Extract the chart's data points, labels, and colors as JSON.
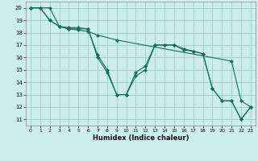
{
  "xlabel": "Humidex (Indice chaleur)",
  "bg_color": "#cceee8",
  "grid_color": "#99cccc",
  "line_color": "#1a6b5a",
  "xlim": [
    -0.5,
    23.5
  ],
  "ylim": [
    10.5,
    20.5
  ],
  "xticks": [
    0,
    1,
    2,
    3,
    4,
    5,
    6,
    7,
    8,
    9,
    10,
    11,
    12,
    13,
    14,
    15,
    16,
    17,
    18,
    19,
    20,
    21,
    22,
    23
  ],
  "yticks": [
    11,
    12,
    13,
    14,
    15,
    16,
    17,
    18,
    19,
    20
  ],
  "line1_x": [
    0,
    1,
    2,
    3,
    4,
    5,
    6,
    7,
    8,
    9,
    10,
    11,
    12,
    13,
    14,
    15,
    16,
    17,
    18,
    19,
    20,
    21,
    22,
    23
  ],
  "line1_y": [
    20,
    20,
    19,
    18.5,
    18.3,
    18.3,
    18.3,
    16.0,
    14.8,
    13.0,
    13.0,
    14.5,
    15.0,
    17.0,
    17.0,
    17.0,
    16.6,
    16.5,
    16.3,
    13.5,
    12.5,
    12.5,
    11.0,
    12.0
  ],
  "line2_x": [
    0,
    1,
    2,
    3,
    4,
    5,
    6,
    7,
    8,
    9,
    10,
    11,
    12,
    13,
    14,
    15,
    16,
    17,
    18,
    19,
    20,
    21,
    22,
    23
  ],
  "line2_y": [
    20,
    20,
    19,
    18.5,
    18.4,
    18.4,
    18.3,
    16.2,
    15.0,
    13.0,
    13.0,
    14.8,
    15.3,
    17.0,
    17.0,
    17.0,
    16.7,
    16.5,
    16.3,
    13.5,
    12.5,
    12.5,
    11.0,
    12.0
  ],
  "line3_x": [
    0,
    1,
    2,
    3,
    4,
    5,
    6,
    7,
    9,
    21,
    22,
    23
  ],
  "line3_y": [
    20,
    20,
    20,
    18.5,
    18.3,
    18.2,
    18.1,
    17.8,
    17.4,
    15.7,
    12.5,
    12.0
  ]
}
